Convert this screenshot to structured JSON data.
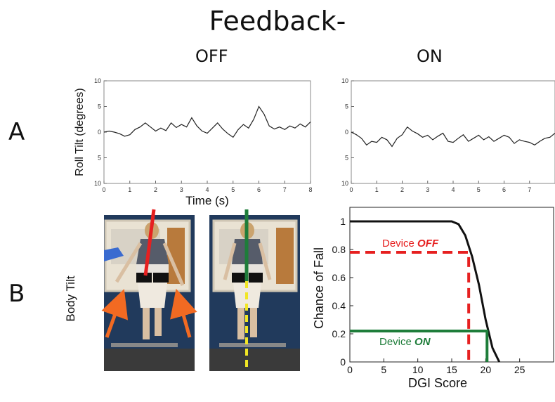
{
  "title": "Feedback-",
  "conditions": {
    "off": "OFF",
    "on": "ON"
  },
  "rows": {
    "a": "A",
    "b": "B"
  },
  "body_tilt_label": "Body Tilt",
  "colors": {
    "red": "#e62020",
    "green": "#1e7d3a",
    "orange": "#f26a22",
    "yellow": "#f1e625",
    "dark": "#222222"
  },
  "chart_data": [
    {
      "type": "line",
      "panel": "A-OFF",
      "ylabel": "Roll Tilt (degrees)",
      "xlabel": "Time (s)",
      "xlim": [
        0,
        8
      ],
      "ylim": [
        -10,
        10
      ],
      "xticks": [
        "0",
        "1",
        "2",
        "3",
        "4",
        "5",
        "6",
        "7",
        "8"
      ],
      "yticks": [
        "10",
        "5",
        "0",
        "5",
        "10"
      ],
      "grid": false,
      "series": [
        {
          "x": [
            0,
            0.2,
            0.4,
            0.6,
            0.8,
            1.0,
            1.2,
            1.4,
            1.6,
            1.8,
            2.0,
            2.2,
            2.4,
            2.6,
            2.8,
            3.0,
            3.2,
            3.4,
            3.6,
            3.8,
            4.0,
            4.2,
            4.4,
            4.6,
            4.8,
            5.0,
            5.2,
            5.4,
            5.6,
            5.8,
            6.0,
            6.2,
            6.4,
            6.6,
            6.8,
            7.0,
            7.2,
            7.4,
            7.6,
            7.8,
            8.0
          ],
          "y": [
            0,
            0.2,
            0,
            -0.3,
            -0.8,
            -0.5,
            0.5,
            1.0,
            1.8,
            1.0,
            0.2,
            0.8,
            0.3,
            1.8,
            0.9,
            1.5,
            1.0,
            2.8,
            1.2,
            0.2,
            -0.2,
            0.8,
            1.8,
            0.6,
            -0.3,
            -1.0,
            0.5,
            1.5,
            0.8,
            2.5,
            5.0,
            3.5,
            1.2,
            0.6,
            1.0,
            0.5,
            1.2,
            0.8,
            1.6,
            1.0,
            2.0
          ]
        }
      ]
    },
    {
      "type": "line",
      "panel": "A-ON",
      "xlim": [
        0,
        8
      ],
      "ylim": [
        -10,
        10
      ],
      "xticks": [
        "0",
        "1",
        "2",
        "3",
        "4",
        "5",
        "6",
        "7"
      ],
      "yticks": [
        "10",
        "5",
        "0",
        "5",
        "10"
      ],
      "grid": false,
      "series": [
        {
          "x": [
            0,
            0.2,
            0.4,
            0.6,
            0.8,
            1.0,
            1.2,
            1.4,
            1.6,
            1.8,
            2.0,
            2.2,
            2.4,
            2.6,
            2.8,
            3.0,
            3.2,
            3.4,
            3.6,
            3.8,
            4.0,
            4.2,
            4.4,
            4.6,
            4.8,
            5.0,
            5.2,
            5.4,
            5.6,
            5.8,
            6.0,
            6.2,
            6.4,
            6.6,
            6.8,
            7.0,
            7.2,
            7.4,
            7.6,
            7.8,
            8.0
          ],
          "y": [
            0,
            -0.5,
            -1.2,
            -2.5,
            -1.8,
            -2.0,
            -1.0,
            -1.5,
            -2.8,
            -1.2,
            -0.5,
            1.0,
            0.2,
            -0.3,
            -1.0,
            -0.6,
            -1.5,
            -0.8,
            -0.2,
            -1.8,
            -2.0,
            -1.2,
            -0.5,
            -1.8,
            -1.2,
            -0.6,
            -1.5,
            -0.9,
            -1.8,
            -1.2,
            -0.6,
            -1.0,
            -2.2,
            -1.5,
            -1.8,
            -2.0,
            -2.5,
            -1.8,
            -1.2,
            -1.0,
            -0.2
          ]
        }
      ]
    },
    {
      "type": "line",
      "panel": "B-right",
      "xlabel": "DGI Score",
      "ylabel": "Chance of Fall",
      "xlim": [
        0,
        30
      ],
      "ylim": [
        0,
        1.1
      ],
      "xticks": [
        "0",
        "5",
        "10",
        "15",
        "20",
        "25"
      ],
      "yticks": [
        "0",
        "0.2",
        "0.4",
        "0.6",
        "0.8",
        "1"
      ],
      "grid": false,
      "series": [
        {
          "x": [
            0,
            15,
            16,
            17,
            18,
            19,
            20,
            21,
            22
          ],
          "y": [
            1,
            1,
            0.98,
            0.9,
            0.75,
            0.55,
            0.3,
            0.1,
            0
          ]
        }
      ],
      "annotations": [
        {
          "prefix": "Device ",
          "state": "OFF",
          "x": 17.5,
          "y": 0.78,
          "color": "#e62020"
        },
        {
          "prefix": "Device ",
          "state": "ON",
          "x": 20.2,
          "y": 0.22,
          "color": "#1e7d3a"
        }
      ]
    }
  ]
}
